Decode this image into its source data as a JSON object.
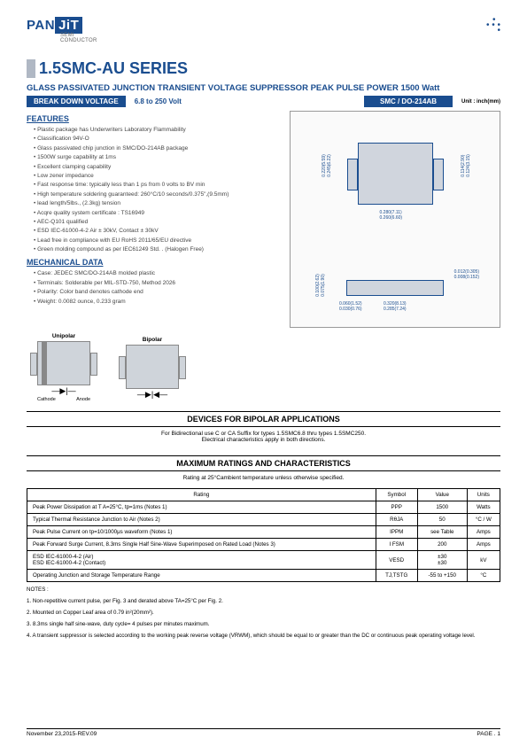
{
  "logo": {
    "pan": "PAN",
    "jit": "JiT",
    "sub": "SEMI\nCONDUCTOR"
  },
  "series_title": "1.5SMC-AU SERIES",
  "subtitle": "GLASS PASSIVATED JUNCTION TRANSIENT VOLTAGE SUPPRESSOR  PEAK PULSE POWER  1500 Watt",
  "bdv": {
    "label": "BREAK DOWN VOLTAGE",
    "range": "6.8 to 250 Volt",
    "pkg": "SMC / DO-214AB",
    "unit": "Unit : inch(mm)"
  },
  "features_title": "FEATURES",
  "features": [
    "Plastic package has Underwriters Laboratory Flammability",
    "Classification 94V-O",
    "Glass passivated chip junction in SMC/DO-214AB package",
    "1500W surge capability at 1ms",
    "Excellent clamping capability",
    "Low zener impedance",
    "Fast response time: typically less than 1 ps from 0 volts to BV min",
    "High temperature soldering guaranteed: 260°C/10 seconds/0.375\",(9.5mm)",
    "lead length/5lbs., (2.3kg) tension",
    "Acqre quality system certificate : TS16949",
    "AEC-Q101 qualified",
    "ESD IEC-61000-4-2 Air ± 30kV, Contact ± 30kV",
    "Lead free in compliance with EU RoHS 2011/65/EU directive",
    "Green molding compound as per IEC61249 Std. . (Halogen Free)"
  ],
  "mech_title": "MECHANICAL DATA",
  "mech": [
    "Case: JEDEC SMC/DO-214AB  molded plastic",
    "Terminals: Solderable per MIL-STD-750, Method 2026",
    "Polarity: Color band denotes cathode end",
    "Weight: 0.0082 ounce, 0.233 gram"
  ],
  "pkg_dims": {
    "h1": "0.220(5.59)",
    "h2": "0.245(6.22)",
    "wbody1": "0.280(7.11)",
    "wbody2": "0.260(6.60)",
    "wfull1": "0.114(2.90)",
    "wfull2": "0.124(3.15)",
    "thk1": "0.012(0.305)",
    "thk2": "0.008(0.152)",
    "sh1": "0.100(2.62)",
    "sh2": "0.075(1.90)",
    "lead1": "0.060(1.52)",
    "lead2": "0.030(0.76)",
    "len1": "0.320(8.13)",
    "len2": "0.285(7.24)"
  },
  "polarity": {
    "uni": "Unipolar",
    "bi": "Bipolar",
    "cathode": "Cathode",
    "anode": "Anode"
  },
  "bipolar_title": "DEVICES FOR BIPOLAR APPLICATIONS",
  "bipolar_sub": "For Bidirectional use C or CA Suffix for types 1.5SMC6.8 thru types 1.5SMC250.\nElectrical characteristics apply in both directions.",
  "ratings_title": "MAXIMUM RATINGS AND CHARACTERISTICS",
  "ratings_sub": "Rating at 25°Cambient temperature unless otherwise specified.",
  "ratings_headers": [
    "Rating",
    "Symbol",
    "Value",
    "Units"
  ],
  "ratings_rows": [
    [
      "Peak Power Dissipation at T A=25°C, tp=1ms (Notes 1)",
      "PPP",
      "1500",
      "Watts"
    ],
    [
      "Typical Thermal Resistance Junction to Air (Notes 2)",
      "RθJA",
      "50",
      "°C / W"
    ],
    [
      "Peak Pulse Current on tp=10/1000μs waveform (Notes 1)",
      "IPPM",
      "see Table",
      "Amps"
    ],
    [
      "Peak Forward Surge Current, 8.3ms Single Half Sine-Wave Superimposed on Rated Load (Notes 3)",
      "I FSM",
      "200",
      "Amps"
    ],
    [
      "ESD IEC-61000-4-2 (Air)\nESD IEC-61000-4-2 (Contact)",
      "VESD",
      "±30\n±30",
      "kV"
    ],
    [
      "Operating Junction and Storage Temperature Range",
      "TJ,TSTG",
      "-55 to +150",
      "°C"
    ]
  ],
  "notes_title": "NOTES :",
  "notes": [
    "1. Non-repetitive current pulse, per Fig. 3 and derated above TA=25°C per Fig. 2.",
    "2. Mounted on Copper Leaf area of  0.79 in²(20mm²).",
    "3. 8.3ms single half sine-wave, duty cycle= 4 pulses per minutes maximum.",
    "4. A transient suppressor is selected according to the working peak reverse voltage (VRWM), which should be equal to or greater than the DC or continuous peak operating voltage level."
  ],
  "footer": {
    "date": "November 23,2015-REV.09",
    "page": "PAGE . 1"
  }
}
